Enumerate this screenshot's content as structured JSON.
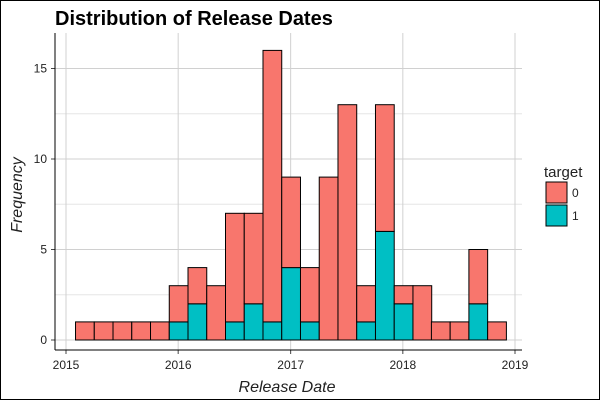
{
  "chart_data": {
    "type": "bar",
    "stacked": true,
    "title": "Distribution of Release Dates",
    "xlabel": "Release Date",
    "ylabel": "Frequency",
    "x_ticks": [
      "2015",
      "2016",
      "2017",
      "2018",
      "2019"
    ],
    "y_ticks": [
      0,
      5,
      10,
      15
    ],
    "xlim": [
      "2015-01-01",
      "2019-01-01"
    ],
    "ylim": [
      0,
      17
    ],
    "bin_width_days": 61,
    "grid": true,
    "legend": {
      "title": "target",
      "placement": "right",
      "entries": [
        {
          "label": "0",
          "color": "#F8766D"
        },
        {
          "label": "1",
          "color": "#00BFC4"
        }
      ]
    },
    "bins": [
      {
        "start": "2015-02-01",
        "target_0": 1,
        "target_1": 0
      },
      {
        "start": "2015-04-03",
        "target_0": 1,
        "target_1": 0
      },
      {
        "start": "2015-06-03",
        "target_0": 1,
        "target_1": 0
      },
      {
        "start": "2015-08-03",
        "target_0": 1,
        "target_1": 0
      },
      {
        "start": "2015-10-03",
        "target_0": 1,
        "target_1": 0
      },
      {
        "start": "2015-12-03",
        "target_0": 2,
        "target_1": 1
      },
      {
        "start": "2016-02-02",
        "target_0": 2,
        "target_1": 2
      },
      {
        "start": "2016-04-03",
        "target_0": 3,
        "target_1": 0
      },
      {
        "start": "2016-06-03",
        "target_0": 6,
        "target_1": 1
      },
      {
        "start": "2016-08-03",
        "target_0": 5,
        "target_1": 2
      },
      {
        "start": "2016-10-03",
        "target_0": 15,
        "target_1": 1
      },
      {
        "start": "2016-12-03",
        "target_0": 5,
        "target_1": 4
      },
      {
        "start": "2017-02-02",
        "target_0": 3,
        "target_1": 1
      },
      {
        "start": "2017-04-04",
        "target_0": 9,
        "target_1": 0
      },
      {
        "start": "2017-06-04",
        "target_0": 13,
        "target_1": 0
      },
      {
        "start": "2017-08-04",
        "target_0": 2,
        "target_1": 1
      },
      {
        "start": "2017-10-04",
        "target_0": 7,
        "target_1": 6
      },
      {
        "start": "2017-12-04",
        "target_0": 1,
        "target_1": 2
      },
      {
        "start": "2018-02-03",
        "target_0": 3,
        "target_1": 0
      },
      {
        "start": "2018-04-04",
        "target_0": 1,
        "target_1": 0
      },
      {
        "start": "2018-06-04",
        "target_0": 1,
        "target_1": 0
      },
      {
        "start": "2018-08-04",
        "target_0": 3,
        "target_1": 2
      },
      {
        "start": "2018-10-04",
        "target_0": 1,
        "target_1": 0
      }
    ]
  }
}
